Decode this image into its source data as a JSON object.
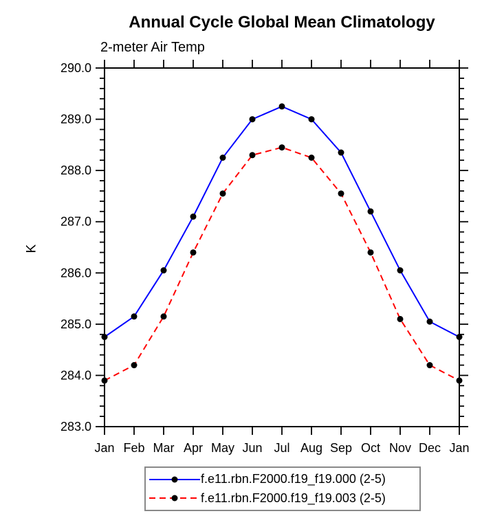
{
  "title": "Annual Cycle Global Mean Climatology",
  "subtitle": "2-meter Air Temp",
  "y_axis_label": "K",
  "colors": {
    "background": "#ffffff",
    "axis": "#000000",
    "marker": "#000000",
    "series1": "#0000ff",
    "series2": "#ff0000",
    "legend_border": "#888888"
  },
  "legend": {
    "items": [
      {
        "label": "f.e11.rbn.F2000.f19_f19.000 (2-5)",
        "style": "solid",
        "color": "#0000ff"
      },
      {
        "label": "f.e11.rbn.F2000.f19_f19.003 (2-5)",
        "style": "dashed",
        "color": "#ff0000"
      }
    ]
  },
  "chart_data": {
    "type": "line",
    "title": "Annual Cycle Global Mean Climatology",
    "subtitle": "2-meter Air Temp",
    "xlabel": "",
    "ylabel": "K",
    "categories": [
      "Jan",
      "Feb",
      "Mar",
      "Apr",
      "May",
      "Jun",
      "Jul",
      "Aug",
      "Sep",
      "Oct",
      "Nov",
      "Dec",
      "Jan"
    ],
    "ylim": [
      283.0,
      290.0
    ],
    "y_major_step": 1.0,
    "y_minor_step": 0.2,
    "y_tick_labels": [
      "283.0",
      "284.0",
      "285.0",
      "286.0",
      "287.0",
      "288.0",
      "289.0",
      "290.0"
    ],
    "grid": false,
    "legend_position": "bottom",
    "marker": "filled-black-circle",
    "series": [
      {
        "name": "f.e11.rbn.F2000.f19_f19.000 (2-5)",
        "color": "#0000ff",
        "line_style": "solid",
        "values": [
          284.75,
          285.15,
          286.05,
          287.1,
          288.25,
          289.0,
          289.25,
          289.0,
          288.35,
          287.2,
          286.05,
          285.05,
          284.75
        ]
      },
      {
        "name": "f.e11.rbn.F2000.f19_f19.003 (2-5)",
        "color": "#ff0000",
        "line_style": "dashed",
        "values": [
          283.9,
          284.2,
          285.15,
          286.4,
          287.55,
          288.3,
          288.45,
          288.25,
          287.55,
          286.4,
          285.1,
          284.2,
          283.9
        ]
      }
    ]
  }
}
